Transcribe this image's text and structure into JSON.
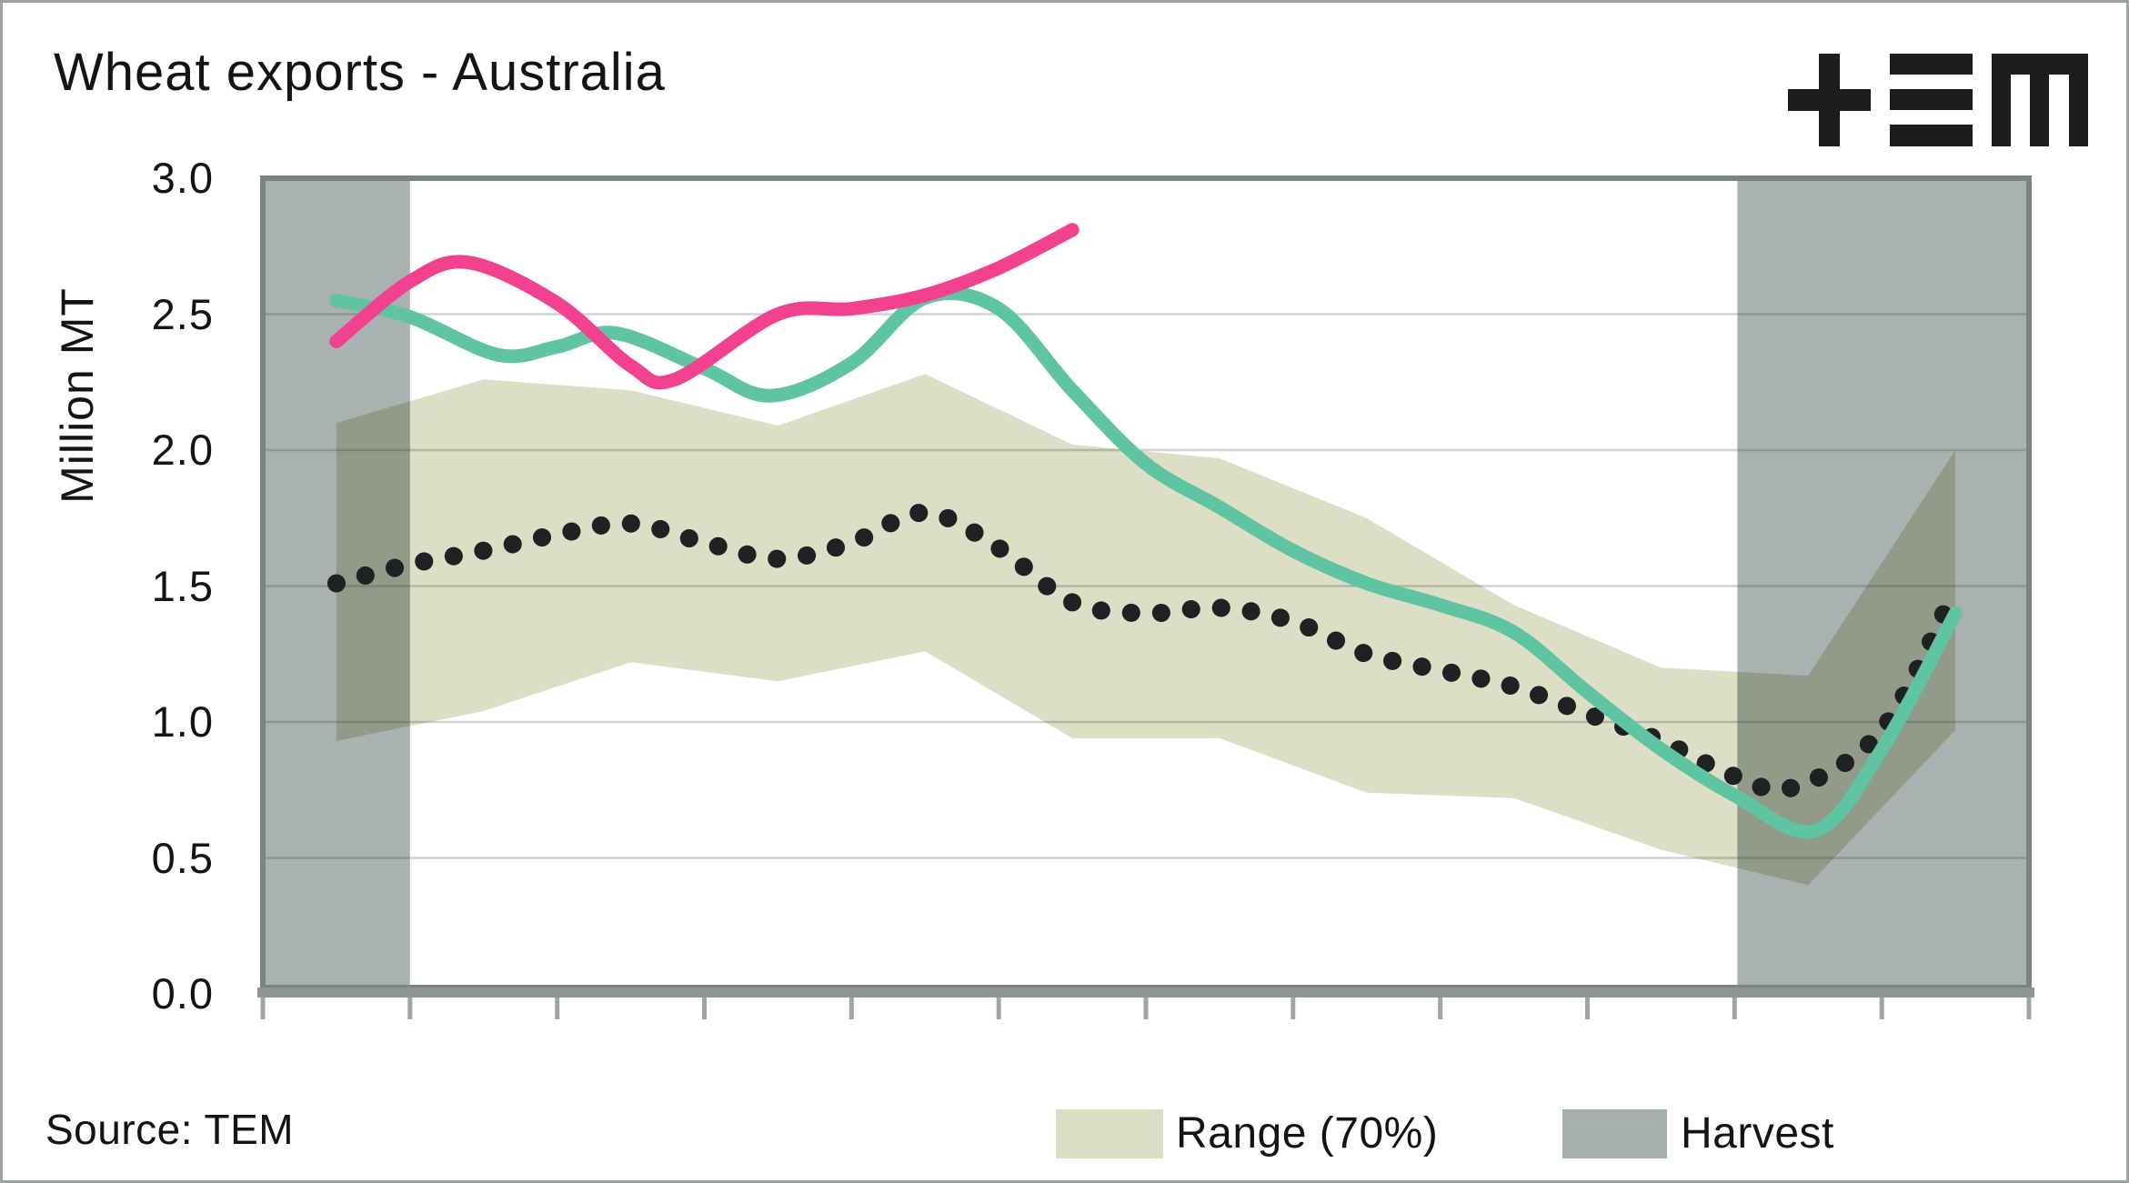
{
  "header": {
    "title": "Wheat exports - Australia",
    "logo_name": "TEM"
  },
  "footer": {
    "source": "Source: TEM"
  },
  "legend": {
    "items": [
      {
        "label": "Range (70%)",
        "color": "#dadcc3"
      },
      {
        "label": "Harvest",
        "color": "#a7afaf"
      }
    ]
  },
  "colors": {
    "pink_line": "#f2418e",
    "teal_line": "#5fc4a2",
    "dotted_line": "#1f2123",
    "range_band": "#dcdec6",
    "harvest_band": "#a9b1b1",
    "gridline": "rgba(55,70,70,0.24)",
    "frame": "#7c8383",
    "axis_bar": "#8e9494",
    "axis_tick": "#9fa5a5",
    "logo_ink": "#1d1d1b"
  },
  "chart_data": {
    "type": "line",
    "title": "Wheat exports - Australia",
    "ylabel": "Million MT",
    "ylim": [
      0,
      3.0
    ],
    "y_tick_labels": [
      "3.0",
      "2.5",
      "2.0",
      "1.5",
      "1.0",
      "0.5",
      "0.0"
    ],
    "y_tick_values": [
      3.0,
      2.5,
      2.0,
      1.5,
      1.0,
      0.5,
      0.0
    ],
    "x_axis": {
      "months": 12,
      "tick_count": 13,
      "tick_labels_shown": false,
      "unit": "month index 0-12, data points at month centers"
    },
    "grid": "horizontal gridlines every 0.5",
    "legend_position": "bottom",
    "harvest_windows": [
      [
        0,
        1
      ],
      [
        10,
        12
      ]
    ],
    "range_band": {
      "name": "Range (70%)",
      "x": [
        0.5,
        1.5,
        2.5,
        3.5,
        4.5,
        5.5,
        6.5,
        7.5,
        8.5,
        9.5,
        10.5,
        11.5
      ],
      "low": [
        0.93,
        1.04,
        1.22,
        1.15,
        1.26,
        0.94,
        0.94,
        0.74,
        0.72,
        0.53,
        0.4,
        0.97
      ],
      "high": [
        2.1,
        2.26,
        2.22,
        2.09,
        2.28,
        2.02,
        1.97,
        1.75,
        1.43,
        1.2,
        1.17,
        2.0
      ]
    },
    "series": [
      {
        "name": "median (dotted)",
        "style": "dotted",
        "x": [
          0.5,
          1.0,
          1.5,
          2.0,
          2.5,
          3.0,
          3.5,
          4.0,
          4.5,
          5.0,
          5.5,
          6.0,
          6.5,
          7.0,
          7.5,
          8.0,
          8.5,
          9.0,
          9.5,
          10.0,
          10.4,
          11.0,
          11.5
        ],
        "y": [
          1.51,
          1.58,
          1.63,
          1.69,
          1.73,
          1.66,
          1.6,
          1.66,
          1.77,
          1.64,
          1.44,
          1.4,
          1.42,
          1.37,
          1.25,
          1.19,
          1.13,
          1.03,
          0.93,
          0.8,
          0.76,
          0.97,
          1.49
        ]
      },
      {
        "name": "season (teal)",
        "style": "solid",
        "x": [
          0.5,
          1.0,
          1.6,
          2.0,
          2.4,
          3.0,
          3.45,
          4.0,
          4.5,
          5.0,
          5.5,
          6.0,
          6.5,
          7.0,
          7.5,
          8.0,
          8.5,
          9.0,
          9.5,
          10.0,
          10.55,
          11.0,
          11.5
        ],
        "y": [
          2.55,
          2.49,
          2.35,
          2.38,
          2.43,
          2.3,
          2.2,
          2.32,
          2.56,
          2.52,
          2.22,
          1.95,
          1.79,
          1.63,
          1.51,
          1.43,
          1.33,
          1.11,
          0.9,
          0.73,
          0.6,
          0.9,
          1.4
        ]
      },
      {
        "name": "current season (pink)",
        "style": "solid",
        "x": [
          0.5,
          1.0,
          1.4,
          2.0,
          2.5,
          2.8,
          3.5,
          4.0,
          4.5,
          5.0,
          5.5
        ],
        "y": [
          2.4,
          2.62,
          2.69,
          2.54,
          2.31,
          2.26,
          2.5,
          2.52,
          2.57,
          2.67,
          2.81
        ]
      }
    ]
  }
}
